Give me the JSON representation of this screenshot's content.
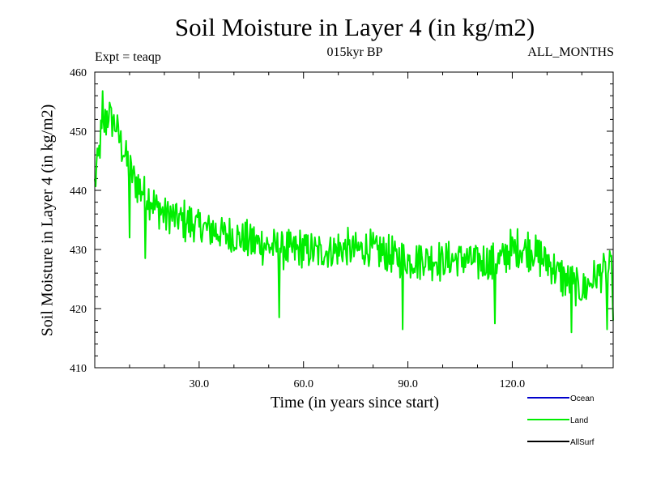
{
  "chart_data": {
    "type": "line",
    "title": "Soil Moisture in Layer 4 (in kg/m2)",
    "subtitle": "015kyr BP",
    "experiment_label": "Expt = teaqp",
    "period_label": "ALL_MONTHS",
    "xlabel": "Time (in years since start)",
    "ylabel": "Soil Moisture in Layer 4 (in kg/m2)",
    "xlim": [
      0,
      149
    ],
    "ylim": [
      410,
      460
    ],
    "x_ticks": [
      30,
      60,
      90,
      120
    ],
    "x_tick_labels": [
      "30.0",
      "60.0",
      "90.0",
      "120.0"
    ],
    "y_ticks": [
      410,
      420,
      430,
      440,
      450,
      460
    ],
    "y_tick_labels": [
      "410",
      "420",
      "430",
      "440",
      "450",
      "460"
    ],
    "legend": [
      {
        "name": "Ocean",
        "color": "#0000cc"
      },
      {
        "name": "Land",
        "color": "#00ee00"
      },
      {
        "name": "AllSurf",
        "color": "#000000"
      }
    ],
    "series": [
      {
        "name": "Land",
        "color": "#00ee00",
        "x_start": 0,
        "x_step": 0.25,
        "envelope_x": [
          0,
          2,
          4,
          6,
          8,
          10,
          12,
          15,
          18,
          20,
          25,
          30,
          35,
          40,
          45,
          50,
          55,
          60,
          65,
          70,
          75,
          80,
          85,
          90,
          95,
          100,
          105,
          110,
          115,
          120,
          125,
          130,
          135,
          140,
          145,
          149
        ],
        "envelope_y": [
          441,
          450,
          453,
          451,
          447,
          444,
          441,
          439,
          437,
          436,
          435,
          434,
          433,
          432,
          431.5,
          430.5,
          430,
          430,
          429.5,
          430,
          430,
          430,
          429,
          428,
          428.5,
          428,
          428.5,
          428,
          427.5,
          430,
          430,
          428,
          425,
          423,
          426,
          427
        ],
        "noise_amplitude": 3.5,
        "notable_points": [
          {
            "x": 2.2,
            "y": 456.8
          },
          {
            "x": 10,
            "y": 432
          },
          {
            "x": 14.5,
            "y": 428.5
          },
          {
            "x": 53,
            "y": 418.5
          },
          {
            "x": 88.5,
            "y": 416.5
          },
          {
            "x": 115,
            "y": 417.5
          },
          {
            "x": 137,
            "y": 416
          },
          {
            "x": 147.3,
            "y": 416.5
          },
          {
            "x": 149,
            "y": 418
          }
        ]
      }
    ]
  }
}
